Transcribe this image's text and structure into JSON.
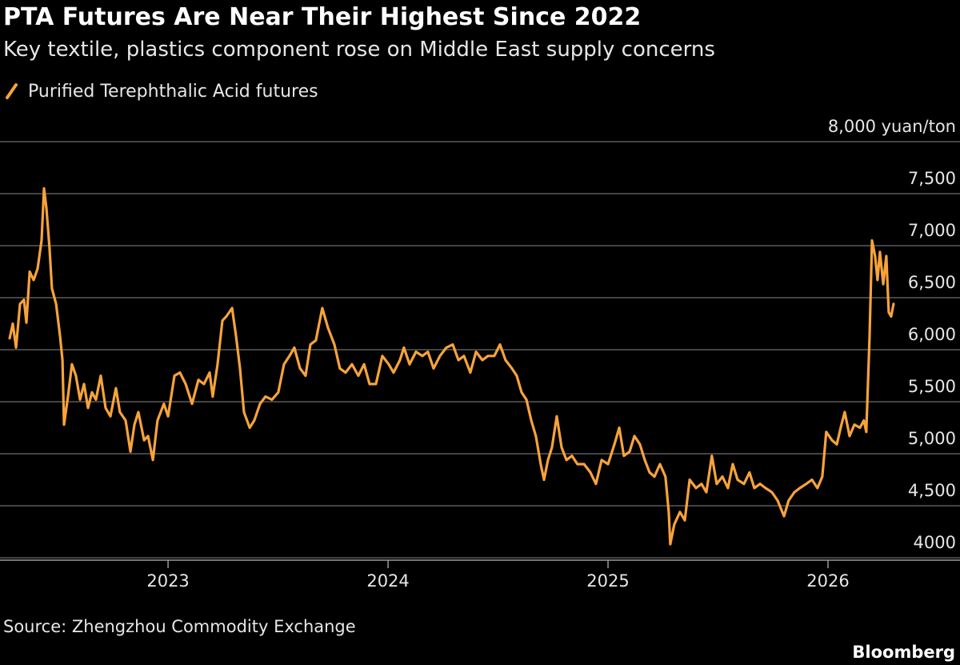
{
  "chart_data": {
    "type": "line",
    "title": "PTA Futures Are Near Their Highest Since 2022",
    "subtitle": "Key textile, plastics component rose on Middle East supply concerns",
    "source": "Source: Zhengzhou Commodity Exchange",
    "credit": "Bloomberg",
    "x": [
      2022.28,
      2022.294,
      2022.309,
      2022.327,
      2022.345,
      2022.356,
      2022.371,
      2022.389,
      2022.407,
      2022.425,
      2022.436,
      2022.447,
      2022.461,
      2022.472,
      2022.491,
      2022.509,
      2022.52,
      2022.527,
      2022.545,
      2022.563,
      2022.581,
      2022.6,
      2022.618,
      2022.636,
      2022.654,
      2022.672,
      2022.694,
      2022.716,
      2022.738,
      2022.763,
      2022.781,
      2022.807,
      2022.829,
      2022.847,
      2022.865,
      2022.891,
      2022.909,
      2022.931,
      2022.952,
      2022.981,
      2023.0,
      2023.029,
      2023.054,
      2023.08,
      2023.109,
      2023.138,
      2023.163,
      2023.189,
      2023.203,
      2023.225,
      2023.247,
      2023.265,
      2023.291,
      2023.309,
      2023.327,
      2023.345,
      2023.371,
      2023.392,
      2023.418,
      2023.443,
      2023.472,
      2023.501,
      2023.527,
      2023.552,
      2023.574,
      2023.6,
      2023.625,
      2023.647,
      2023.672,
      2023.701,
      2023.727,
      2023.756,
      2023.781,
      2023.807,
      2023.836,
      2023.865,
      2023.891,
      2023.916,
      2023.945,
      2023.974,
      2024.003,
      2024.025,
      2024.054,
      2024.072,
      2024.098,
      2024.127,
      2024.156,
      2024.181,
      2024.207,
      2024.236,
      2024.265,
      2024.294,
      2024.32,
      2024.345,
      2024.374,
      2024.4,
      2024.429,
      2024.454,
      2024.483,
      2024.509,
      2024.534,
      2024.563,
      2024.585,
      2024.607,
      2024.629,
      2024.651,
      2024.672,
      2024.694,
      2024.709,
      2024.727,
      2024.745,
      2024.767,
      2024.789,
      2024.811,
      2024.836,
      2024.861,
      2024.891,
      2024.92,
      2024.945,
      2024.971,
      2025.0,
      2025.029,
      2025.051,
      2025.072,
      2025.098,
      2025.12,
      2025.145,
      2025.167,
      2025.189,
      2025.211,
      2025.236,
      2025.261,
      2025.276,
      2025.283,
      2025.301,
      2025.327,
      2025.349,
      2025.371,
      2025.4,
      2025.425,
      2025.447,
      2025.472,
      2025.494,
      2025.52,
      2025.545,
      2025.567,
      2025.589,
      2025.618,
      2025.643,
      2025.665,
      2025.691,
      2025.716,
      2025.745,
      2025.771,
      2025.8,
      2025.821,
      2025.847,
      2025.872,
      2025.901,
      2025.927,
      2025.952,
      2025.974,
      2025.992,
      2026.018,
      2026.04,
      2026.061,
      2026.076,
      2026.098,
      2026.12,
      2026.145,
      2026.163,
      2026.174,
      2026.189,
      2026.2,
      2026.214,
      2026.225,
      2026.236,
      2026.251,
      2026.265,
      2026.276,
      2026.287,
      2026.298
    ],
    "series": [
      {
        "name": "Purified Terephthalic Acid futures",
        "color": "#f7a33b",
        "values": [
          6110,
          6250,
          6020,
          6440,
          6480,
          6260,
          6750,
          6670,
          6780,
          7050,
          7550,
          7360,
          6980,
          6590,
          6440,
          6130,
          5900,
          5280,
          5550,
          5860,
          5750,
          5520,
          5670,
          5440,
          5590,
          5520,
          5750,
          5440,
          5360,
          5630,
          5400,
          5320,
          5020,
          5280,
          5400,
          5130,
          5170,
          4940,
          5320,
          5480,
          5360,
          5750,
          5780,
          5670,
          5480,
          5710,
          5670,
          5780,
          5550,
          5860,
          6280,
          6320,
          6400,
          6130,
          5820,
          5400,
          5250,
          5320,
          5480,
          5550,
          5520,
          5590,
          5860,
          5940,
          6020,
          5820,
          5750,
          6050,
          6090,
          6400,
          6210,
          6050,
          5820,
          5780,
          5860,
          5750,
          5860,
          5670,
          5670,
          5940,
          5860,
          5780,
          5900,
          6020,
          5860,
          5980,
          5940,
          5980,
          5820,
          5940,
          6020,
          6050,
          5900,
          5940,
          5780,
          5980,
          5900,
          5940,
          5940,
          6050,
          5900,
          5820,
          5750,
          5590,
          5520,
          5320,
          5170,
          4900,
          4750,
          4940,
          5060,
          5360,
          5060,
          4940,
          4980,
          4900,
          4900,
          4820,
          4710,
          4940,
          4900,
          5090,
          5250,
          4980,
          5020,
          5170,
          5090,
          4940,
          4820,
          4780,
          4900,
          4780,
          4440,
          4130,
          4320,
          4440,
          4360,
          4750,
          4670,
          4710,
          4630,
          4980,
          4710,
          4780,
          4670,
          4900,
          4750,
          4710,
          4820,
          4670,
          4710,
          4670,
          4630,
          4550,
          4400,
          4550,
          4630,
          4670,
          4710,
          4750,
          4670,
          4780,
          5210,
          5130,
          5090,
          5280,
          5400,
          5170,
          5280,
          5250,
          5320,
          5210,
          6130,
          7050,
          6900,
          6670,
          6940,
          6630,
          6900,
          6360,
          6320,
          6440
        ]
      }
    ],
    "xlim": [
      2022.236,
      2026.6
    ],
    "xticks": [
      2023,
      2024,
      2025,
      2026
    ],
    "ylim": [
      3980,
      8000
    ],
    "yticks": [
      4000,
      {
        "value": 4500,
        "label": "4,500"
      },
      {
        "value": 5000,
        "label": "5,000"
      },
      {
        "value": 5500,
        "label": "5,500"
      },
      {
        "value": 6000,
        "label": "6,000"
      },
      {
        "value": 6500,
        "label": "6,500"
      },
      {
        "value": 7000,
        "label": "7,000"
      },
      {
        "value": 7500,
        "label": "7,500"
      },
      {
        "value": 8000,
        "label": "8,000 yuan/ton"
      }
    ],
    "grid": true
  }
}
